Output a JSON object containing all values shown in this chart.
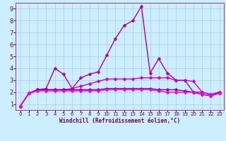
{
  "background_color": "#cceeff",
  "grid_color": "#aaccdd",
  "xlabel": "Windchill (Refroidissement éolien,°C)",
  "xlim": [
    -0.5,
    23.5
  ],
  "ylim": [
    0.5,
    9.5
  ],
  "xticks": [
    0,
    1,
    2,
    3,
    4,
    5,
    6,
    7,
    8,
    9,
    10,
    11,
    12,
    13,
    14,
    15,
    16,
    17,
    18,
    19,
    20,
    21,
    22,
    23
  ],
  "yticks": [
    1,
    2,
    3,
    4,
    5,
    6,
    7,
    8,
    9
  ],
  "series": [
    {
      "x": [
        0,
        1,
        2,
        3,
        4,
        5,
        6,
        7,
        8,
        9,
        10,
        11,
        12,
        13,
        14,
        15,
        16,
        17,
        18,
        19,
        20,
        21,
        22,
        23
      ],
      "y": [
        0.8,
        1.9,
        2.2,
        2.3,
        4.0,
        3.5,
        2.3,
        3.2,
        3.5,
        3.7,
        5.1,
        6.5,
        7.6,
        8.0,
        9.2,
        3.6,
        4.8,
        3.6,
        3.0,
        3.0,
        2.0,
        2.0,
        1.8,
        2.0
      ],
      "color": "#aa00aa",
      "linewidth": 1.0
    },
    {
      "x": [
        0,
        1,
        2,
        3,
        4,
        5,
        6,
        7,
        8,
        9,
        10,
        11,
        12,
        13,
        14,
        15,
        16,
        17,
        18,
        19,
        20,
        21,
        22,
        23
      ],
      "y": [
        0.8,
        1.9,
        2.2,
        2.2,
        2.2,
        2.2,
        2.3,
        2.5,
        2.7,
        2.9,
        3.1,
        3.1,
        3.1,
        3.1,
        3.2,
        3.2,
        3.2,
        3.2,
        3.0,
        3.0,
        2.9,
        2.0,
        1.8,
        2.0
      ],
      "color": "#cc00cc",
      "linewidth": 1.0
    },
    {
      "x": [
        0,
        1,
        2,
        3,
        4,
        5,
        6,
        7,
        8,
        9,
        10,
        11,
        12,
        13,
        14,
        15,
        16,
        17,
        18,
        19,
        20,
        21,
        22,
        23
      ],
      "y": [
        0.8,
        1.9,
        2.2,
        2.2,
        2.2,
        2.2,
        2.2,
        2.2,
        2.2,
        2.2,
        2.3,
        2.3,
        2.3,
        2.3,
        2.3,
        2.3,
        2.2,
        2.2,
        2.2,
        2.1,
        2.0,
        1.8,
        1.7,
        1.9
      ],
      "color": "#880088",
      "linewidth": 1.0
    },
    {
      "x": [
        0,
        1,
        2,
        3,
        4,
        5,
        6,
        7,
        8,
        9,
        10,
        11,
        12,
        13,
        14,
        15,
        16,
        17,
        18,
        19,
        20,
        21,
        22,
        23
      ],
      "y": [
        0.8,
        1.9,
        2.1,
        2.1,
        2.1,
        2.1,
        2.1,
        2.1,
        2.1,
        2.1,
        2.2,
        2.2,
        2.2,
        2.2,
        2.2,
        2.2,
        2.1,
        2.0,
        2.0,
        2.0,
        2.0,
        1.8,
        1.7,
        1.9
      ],
      "color": "#ee00ee",
      "linewidth": 1.0
    }
  ]
}
